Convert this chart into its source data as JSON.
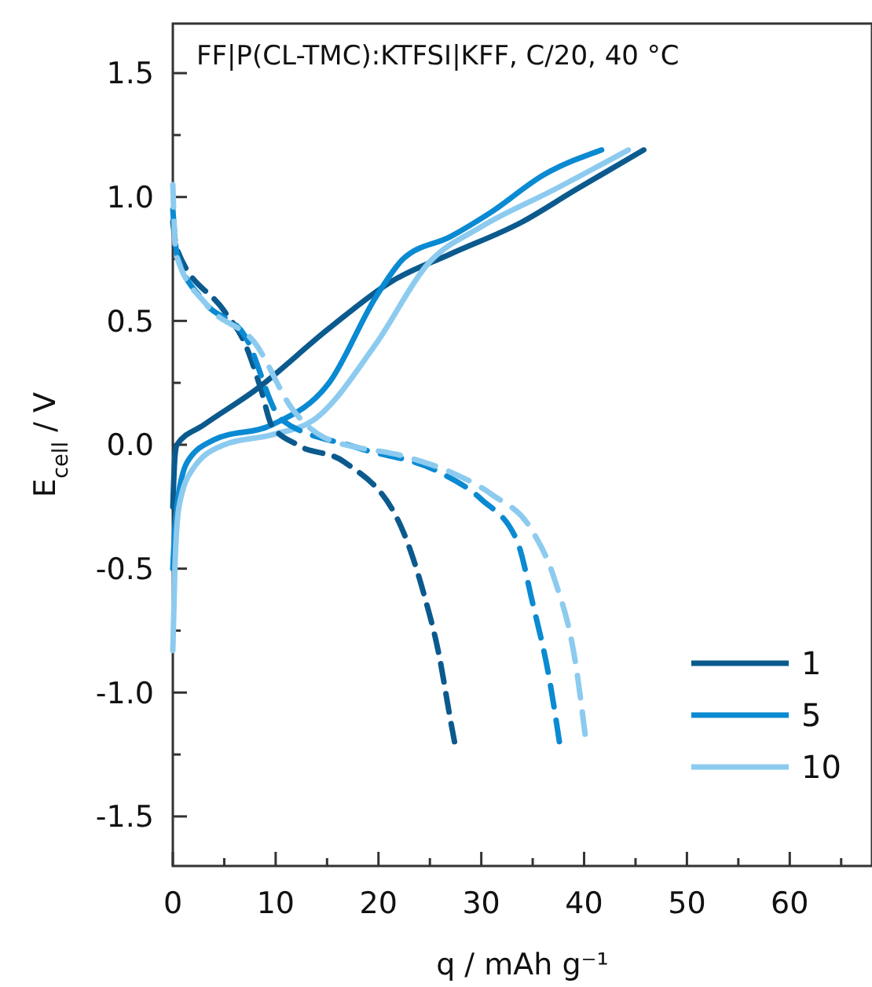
{
  "chart_data": {
    "type": "line",
    "title": "FF|P(CL-TMC):KTFSI|KFF, C/20, 40 °C",
    "xlabel": "q / mAh g⁻¹",
    "ylabel": "E$_{cell}$ / V",
    "xlim": [
      0,
      68
    ],
    "xticks": [
      0,
      {
        "value": 5,
        "label": null
      },
      10,
      {
        "value": 15,
        "label": null
      },
      20,
      {
        "value": 25,
        "label": null
      },
      30,
      {
        "value": 35,
        "label": null
      },
      40,
      {
        "value": 45,
        "label": null
      },
      50,
      {
        "value": 55,
        "label": null
      },
      60,
      {
        "value": 65,
        "label": null
      }
    ],
    "ylim": [
      -1.7,
      1.7
    ],
    "yticks": [
      {
        "value": -1.5,
        "label": "-1.5"
      },
      {
        "value": -1.25,
        "label": null
      },
      {
        "value": -1.0,
        "label": "-1.0"
      },
      {
        "value": -0.75,
        "label": null
      },
      {
        "value": -0.5,
        "label": "-0.5"
      },
      {
        "value": -0.25,
        "label": null
      },
      {
        "value": 0,
        "label": "0.0"
      },
      {
        "value": 0.25,
        "label": null
      },
      {
        "value": 0.5,
        "label": "0.5"
      },
      {
        "value": 0.75,
        "label": null
      },
      {
        "value": 1.0,
        "label": "1.0"
      },
      {
        "value": 1.25,
        "label": null
      },
      {
        "value": 1.5,
        "label": "1.5"
      }
    ],
    "grid": false,
    "legend": "bottom right",
    "series": [
      {
        "name": "1",
        "color": "#0b5a8e",
        "line_style": "solid",
        "x": [
          0,
          0.2,
          0.4,
          3,
          8,
          15.2,
          21.3,
          27,
          34,
          39.2,
          45.8
        ],
        "values": [
          -0.25,
          -0.05,
          0.0,
          0.08,
          0.22,
          0.47,
          0.66,
          0.77,
          0.9,
          1.03,
          1.19
        ]
      },
      {
        "name": "5",
        "color": "#0a8ad2",
        "line_style": "solid",
        "x": [
          0,
          0.3,
          1.4,
          4,
          9.6,
          15.2,
          19.8,
          22.4,
          27,
          31,
          36.1,
          41.7
        ],
        "values": [
          -0.5,
          -0.28,
          -0.07,
          0.02,
          0.08,
          0.25,
          0.6,
          0.75,
          0.84,
          0.94,
          1.09,
          1.19
        ]
      },
      {
        "name": "10",
        "color": "#8ccbef",
        "line_style": "solid",
        "x": [
          0,
          0.2,
          0.6,
          1.9,
          5,
          9.6,
          13.7,
          19.8,
          24.8,
          30,
          37.1,
          44.3
        ],
        "values": [
          -0.83,
          -0.5,
          -0.25,
          -0.1,
          0.0,
          0.04,
          0.1,
          0.41,
          0.73,
          0.88,
          1.03,
          1.19
        ]
      },
      {
        "color": "#0b5a8e",
        "line_style": "dashed",
        "x": [
          0,
          0.4,
          5,
          7,
          8.6,
          9.6,
          12.1,
          16.7,
          22.4,
          24.4,
          25.9,
          27,
          27.4
        ],
        "values": [
          0.9,
          0.79,
          0.54,
          0.41,
          0.22,
          0.08,
          0.0,
          -0.07,
          -0.35,
          -0.6,
          -0.85,
          -1.11,
          -1.2
        ]
      },
      {
        "color": "#0a8ad2",
        "line_style": "dashed",
        "x": [
          0,
          0.4,
          3,
          7,
          10.6,
          17.8,
          25.9,
          30,
          33.5,
          35,
          36.6,
          37.6
        ],
        "values": [
          0.95,
          0.77,
          0.58,
          0.44,
          0.1,
          -0.01,
          -0.11,
          -0.22,
          -0.39,
          -0.64,
          -0.94,
          -1.2
        ]
      },
      {
        "color": "#8ccbef",
        "line_style": "dashed",
        "x": [
          0,
          0.3,
          3.4,
          8,
          11.7,
          14.7,
          22.8,
          27,
          31,
          35,
          37.1,
          39.2,
          40.1
        ],
        "values": [
          1.05,
          0.77,
          0.56,
          0.41,
          0.14,
          0.03,
          -0.05,
          -0.11,
          -0.2,
          -0.35,
          -0.54,
          -0.89,
          -1.17
        ]
      }
    ]
  }
}
